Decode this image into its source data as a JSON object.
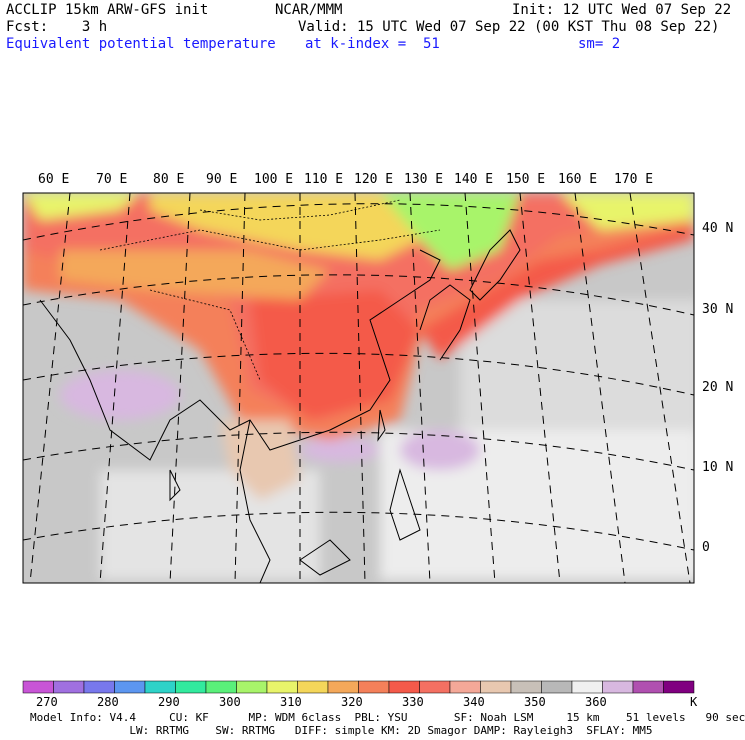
{
  "header": {
    "line1_left": "ACCLIP 15km ARW-GFS init",
    "line1_mid": "NCAR/MMM",
    "line1_right": "Init: 12 UTC Wed 07 Sep 22",
    "line2_left": "Fcst:    3 h",
    "line2_right": "Valid: 15 UTC Wed 07 Sep 22 (00 KST Thu 08 Sep 22)",
    "line3_left": "Equivalent potential temperature",
    "line3_mid": "at k-index =  51",
    "line3_right": "sm= 2"
  },
  "map": {
    "lon_labels": [
      "60 E",
      "70 E",
      "80 E",
      "90 E",
      "100 E",
      "110 E",
      "120 E",
      "130 E",
      "140 E",
      "150 E",
      "160 E",
      "170 E"
    ],
    "lat_labels": [
      "40 N",
      "30 N",
      "20 N",
      "10 N",
      "0"
    ]
  },
  "colorbar": {
    "colors": [
      "#c855d6",
      "#a070e0",
      "#7878ec",
      "#5c96f0",
      "#2ed2c8",
      "#32ea9e",
      "#5af07a",
      "#a8f46a",
      "#e8f46a",
      "#f4d65a",
      "#f4a85a",
      "#f4805a",
      "#f45a4a",
      "#f47062",
      "#f4a898",
      "#e8c8b0",
      "#c8c0b8",
      "#b8b8b8",
      "#f0f0f0",
      "#d8b8e0",
      "#b050b0",
      "#800080"
    ],
    "labels": [
      "270",
      "280",
      "290",
      "300",
      "310",
      "320",
      "330",
      "340",
      "350",
      "360"
    ],
    "unit": "K"
  },
  "footer": {
    "line1": "Model Info: V4.4     CU: KF      MP: WDM 6class  PBL: YSU       SF: Noah LSM     15 km    51 levels   90 sec",
    "line2": "               LW: RRTMG    SW: RRTMG   DIFF: simple KM: 2D Smagor DAMP: Rayleigh3  SFLAY: MM5"
  }
}
